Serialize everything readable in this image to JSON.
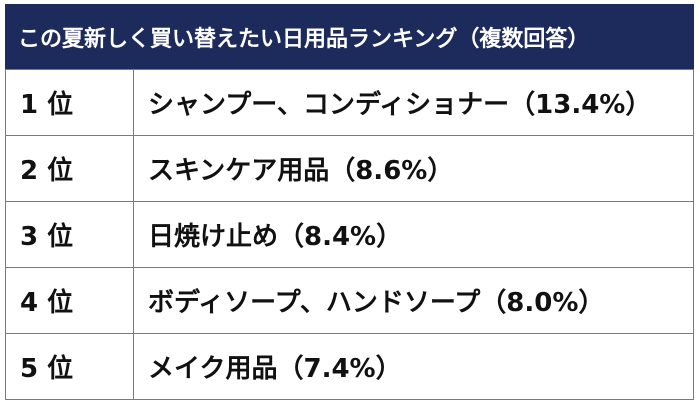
{
  "header": {
    "title": "この夏新しく買い替えたい日用品ランキング（複数回答）"
  },
  "table": {
    "rows": [
      [
        "1 位",
        "シャンプー、コンディショナー（13.4%）"
      ],
      [
        "2 位",
        "スキンケア用品（8.6%）"
      ],
      [
        "3 位",
        "日焼け止め（8.4%）"
      ],
      [
        "4 位",
        "ボディソープ、ハンドソープ（8.0%）"
      ],
      [
        "5 位",
        "メイク用品（7.4%）"
      ]
    ]
  }
}
